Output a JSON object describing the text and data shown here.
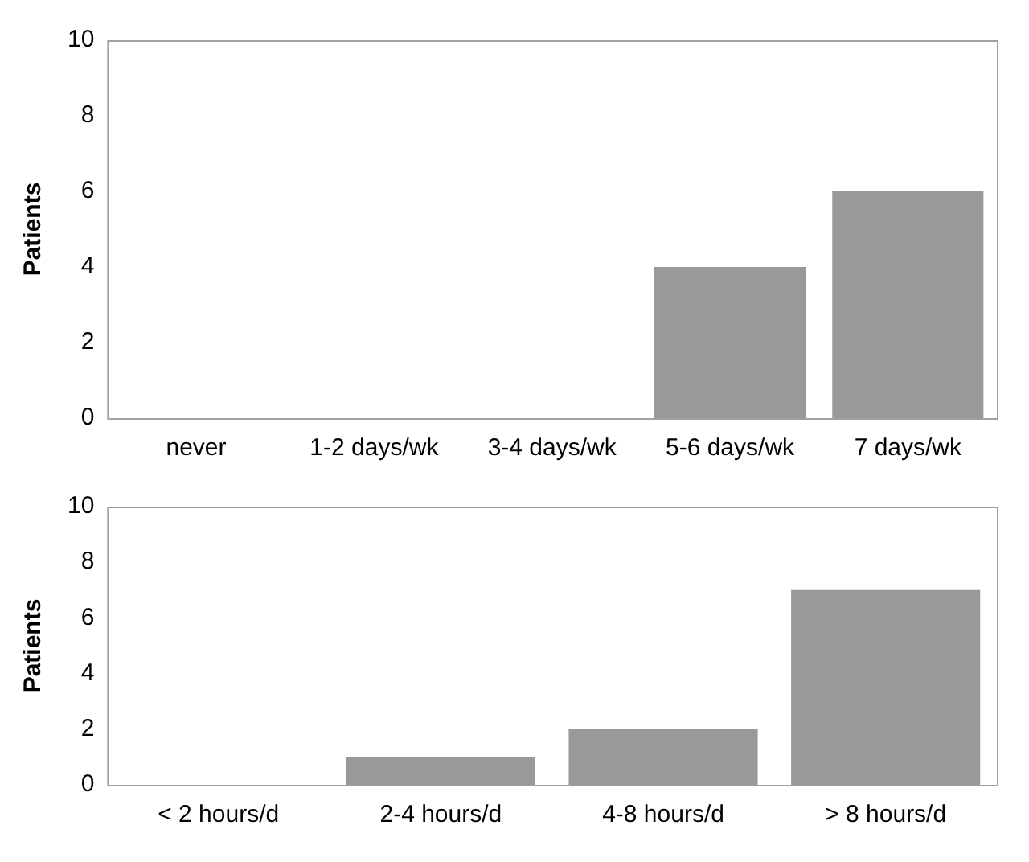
{
  "chart_data": [
    {
      "type": "bar",
      "ylabel": "Patients",
      "categories": [
        "never",
        "1-2 days/wk",
        "3-4 days/wk",
        "5-6 days/wk",
        "7 days/wk"
      ],
      "values": [
        0,
        0,
        0,
        4,
        6
      ],
      "color": "#999999",
      "ylim": [
        0,
        10
      ],
      "yticks": [
        0,
        2,
        4,
        6,
        8,
        10
      ],
      "grid": false,
      "legend": false
    },
    {
      "type": "bar",
      "ylabel": "Patients",
      "categories": [
        "< 2 hours/d",
        "2-4 hours/d",
        "4-8 hours/d",
        "> 8 hours/d"
      ],
      "values": [
        0,
        1,
        2,
        7
      ],
      "color": "#999999",
      "ylim": [
        0,
        10
      ],
      "yticks": [
        0,
        2,
        4,
        6,
        8,
        10
      ],
      "grid": false,
      "legend": false
    }
  ]
}
